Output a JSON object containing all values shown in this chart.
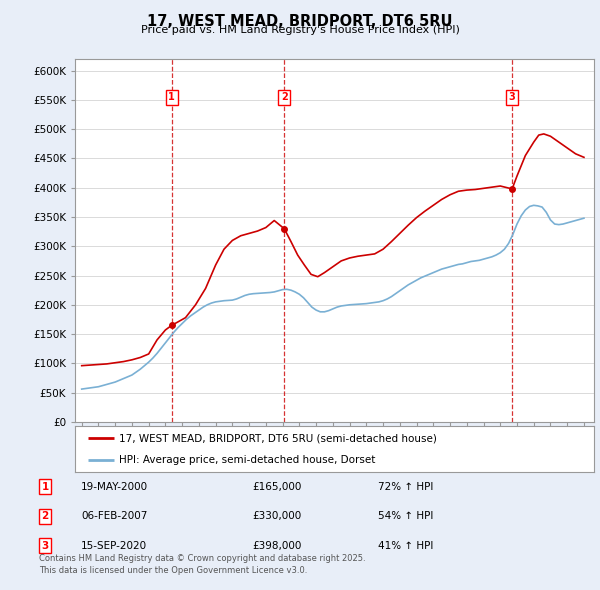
{
  "title": "17, WEST MEAD, BRIDPORT, DT6 5RU",
  "subtitle": "Price paid vs. HM Land Registry's House Price Index (HPI)",
  "ylabel_ticks": [
    "£0",
    "£50K",
    "£100K",
    "£150K",
    "£200K",
    "£250K",
    "£300K",
    "£350K",
    "£400K",
    "£450K",
    "£500K",
    "£550K",
    "£600K"
  ],
  "ytick_values": [
    0,
    50000,
    100000,
    150000,
    200000,
    250000,
    300000,
    350000,
    400000,
    450000,
    500000,
    550000,
    600000
  ],
  "ylim": [
    0,
    620000
  ],
  "xlim_start": 1994.6,
  "xlim_end": 2025.6,
  "sales": [
    {
      "label": "1",
      "date": "19-MAY-2000",
      "year": 2000.38,
      "price": 165000
    },
    {
      "label": "2",
      "date": "06-FEB-2007",
      "year": 2007.1,
      "price": 330000
    },
    {
      "label": "3",
      "date": "15-SEP-2020",
      "year": 2020.71,
      "price": 398000
    }
  ],
  "sale_info": [
    {
      "num": "1",
      "date": "19-MAY-2000",
      "price": "£165,000",
      "hpi": "72% ↑ HPI"
    },
    {
      "num": "2",
      "date": "06-FEB-2007",
      "price": "£330,000",
      "hpi": "54% ↑ HPI"
    },
    {
      "num": "3",
      "date": "15-SEP-2020",
      "price": "£398,000",
      "hpi": "41% ↑ HPI"
    }
  ],
  "property_color": "#cc0000",
  "hpi_color": "#7ab0d4",
  "dashed_line_color": "#cc0000",
  "legend_property": "17, WEST MEAD, BRIDPORT, DT6 5RU (semi-detached house)",
  "legend_hpi": "HPI: Average price, semi-detached house, Dorset",
  "footer": "Contains HM Land Registry data © Crown copyright and database right 2025.\nThis data is licensed under the Open Government Licence v3.0.",
  "background_color": "#e8eef8",
  "plot_bg_color": "#ffffff",
  "hpi_x": [
    1995.0,
    1995.25,
    1995.5,
    1995.75,
    1996.0,
    1996.25,
    1996.5,
    1996.75,
    1997.0,
    1997.25,
    1997.5,
    1997.75,
    1998.0,
    1998.25,
    1998.5,
    1998.75,
    1999.0,
    1999.25,
    1999.5,
    1999.75,
    2000.0,
    2000.25,
    2000.5,
    2000.75,
    2001.0,
    2001.25,
    2001.5,
    2001.75,
    2002.0,
    2002.25,
    2002.5,
    2002.75,
    2003.0,
    2003.25,
    2003.5,
    2003.75,
    2004.0,
    2004.25,
    2004.5,
    2004.75,
    2005.0,
    2005.25,
    2005.5,
    2005.75,
    2006.0,
    2006.25,
    2006.5,
    2006.75,
    2007.0,
    2007.25,
    2007.5,
    2007.75,
    2008.0,
    2008.25,
    2008.5,
    2008.75,
    2009.0,
    2009.25,
    2009.5,
    2009.75,
    2010.0,
    2010.25,
    2010.5,
    2010.75,
    2011.0,
    2011.25,
    2011.5,
    2011.75,
    2012.0,
    2012.25,
    2012.5,
    2012.75,
    2013.0,
    2013.25,
    2013.5,
    2013.75,
    2014.0,
    2014.25,
    2014.5,
    2014.75,
    2015.0,
    2015.25,
    2015.5,
    2015.75,
    2016.0,
    2016.25,
    2016.5,
    2016.75,
    2017.0,
    2017.25,
    2017.5,
    2017.75,
    2018.0,
    2018.25,
    2018.5,
    2018.75,
    2019.0,
    2019.25,
    2019.5,
    2019.75,
    2020.0,
    2020.25,
    2020.5,
    2020.75,
    2021.0,
    2021.25,
    2021.5,
    2021.75,
    2022.0,
    2022.25,
    2022.5,
    2022.75,
    2023.0,
    2023.25,
    2023.5,
    2023.75,
    2024.0,
    2024.25,
    2024.5,
    2024.75,
    2025.0
  ],
  "hpi_y": [
    56000,
    57000,
    58000,
    59000,
    60000,
    62000,
    64000,
    66000,
    68000,
    71000,
    74000,
    77000,
    80000,
    85000,
    90000,
    96000,
    102000,
    109000,
    117000,
    126000,
    135000,
    144000,
    153000,
    161000,
    168000,
    175000,
    181000,
    186000,
    191000,
    196000,
    200000,
    203000,
    205000,
    206000,
    207000,
    207500,
    208000,
    210000,
    213000,
    216000,
    218000,
    219000,
    219500,
    220000,
    220500,
    221000,
    222000,
    224000,
    226000,
    226500,
    225000,
    222000,
    218000,
    212000,
    204000,
    196000,
    191000,
    188000,
    188000,
    190000,
    193000,
    196000,
    198000,
    199000,
    200000,
    200500,
    201000,
    201500,
    202000,
    203000,
    204000,
    205000,
    207000,
    210000,
    214000,
    219000,
    224000,
    229000,
    234000,
    238000,
    242000,
    246000,
    249000,
    252000,
    255000,
    258000,
    261000,
    263000,
    265000,
    267000,
    269000,
    270000,
    272000,
    274000,
    275000,
    276000,
    278000,
    280000,
    282000,
    285000,
    289000,
    295000,
    305000,
    320000,
    338000,
    352000,
    362000,
    368000,
    370000,
    369000,
    367000,
    358000,
    345000,
    338000,
    337000,
    338000,
    340000,
    342000,
    344000,
    346000,
    348000
  ],
  "prop_x": [
    1995.0,
    1995.5,
    1996.0,
    1996.5,
    1997.0,
    1997.5,
    1998.0,
    1998.5,
    1999.0,
    1999.5,
    2000.0,
    2000.38,
    2000.7,
    2001.2,
    2001.8,
    2002.4,
    2003.0,
    2003.5,
    2004.0,
    2004.5,
    2005.0,
    2005.5,
    2006.0,
    2006.5,
    2007.1,
    2007.5,
    2007.9,
    2008.3,
    2008.7,
    2009.1,
    2009.5,
    2010.0,
    2010.5,
    2011.0,
    2011.5,
    2012.0,
    2012.5,
    2013.0,
    2013.5,
    2014.0,
    2014.5,
    2015.0,
    2015.5,
    2016.0,
    2016.5,
    2017.0,
    2017.5,
    2018.0,
    2018.5,
    2019.0,
    2019.5,
    2020.0,
    2020.71,
    2021.0,
    2021.5,
    2022.0,
    2022.3,
    2022.6,
    2023.0,
    2023.5,
    2024.0,
    2024.5,
    2025.0
  ],
  "prop_y": [
    96000,
    97000,
    98000,
    99000,
    101000,
    103000,
    106000,
    110000,
    116000,
    140000,
    157000,
    165000,
    170000,
    178000,
    200000,
    228000,
    268000,
    295000,
    310000,
    318000,
    322000,
    326000,
    332000,
    344000,
    330000,
    308000,
    285000,
    268000,
    252000,
    248000,
    255000,
    265000,
    275000,
    280000,
    283000,
    285000,
    287000,
    295000,
    308000,
    322000,
    336000,
    349000,
    360000,
    370000,
    380000,
    388000,
    394000,
    396000,
    397000,
    399000,
    401000,
    403000,
    398000,
    420000,
    455000,
    478000,
    490000,
    492000,
    488000,
    478000,
    468000,
    458000,
    452000
  ]
}
